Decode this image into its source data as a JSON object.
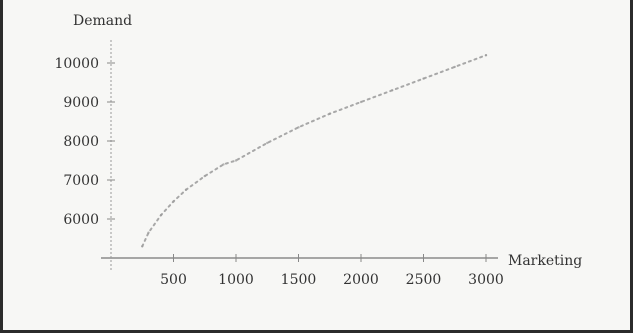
{
  "chart_data": {
    "type": "line",
    "title": "",
    "xlabel": "Marketing",
    "ylabel": "Demand",
    "xlim": [
      0,
      3000
    ],
    "ylim": [
      5000,
      10500
    ],
    "xticks": [
      500,
      1000,
      1500,
      2000,
      2500,
      3000
    ],
    "yticks": [
      6000,
      7000,
      8000,
      9000,
      10000
    ],
    "xtick_labels": [
      "500",
      "1000",
      "1500",
      "2000",
      "2500",
      "3000"
    ],
    "ytick_labels": [
      "6000",
      "7000",
      "8000",
      "9000",
      "10000"
    ],
    "grid": false,
    "series": [
      {
        "x": [
          250,
          300,
          400,
          500,
          600,
          750,
          900,
          1000,
          1250,
          1500,
          1750,
          2000,
          2250,
          2500,
          2750,
          3000
        ],
        "y": [
          5300,
          5650,
          6100,
          6450,
          6750,
          7100,
          7400,
          7500,
          7950,
          8350,
          8700,
          9000,
          9300,
          9600,
          9900,
          10200
        ],
        "color": "#9a9a9a",
        "style": "dotted"
      }
    ]
  }
}
